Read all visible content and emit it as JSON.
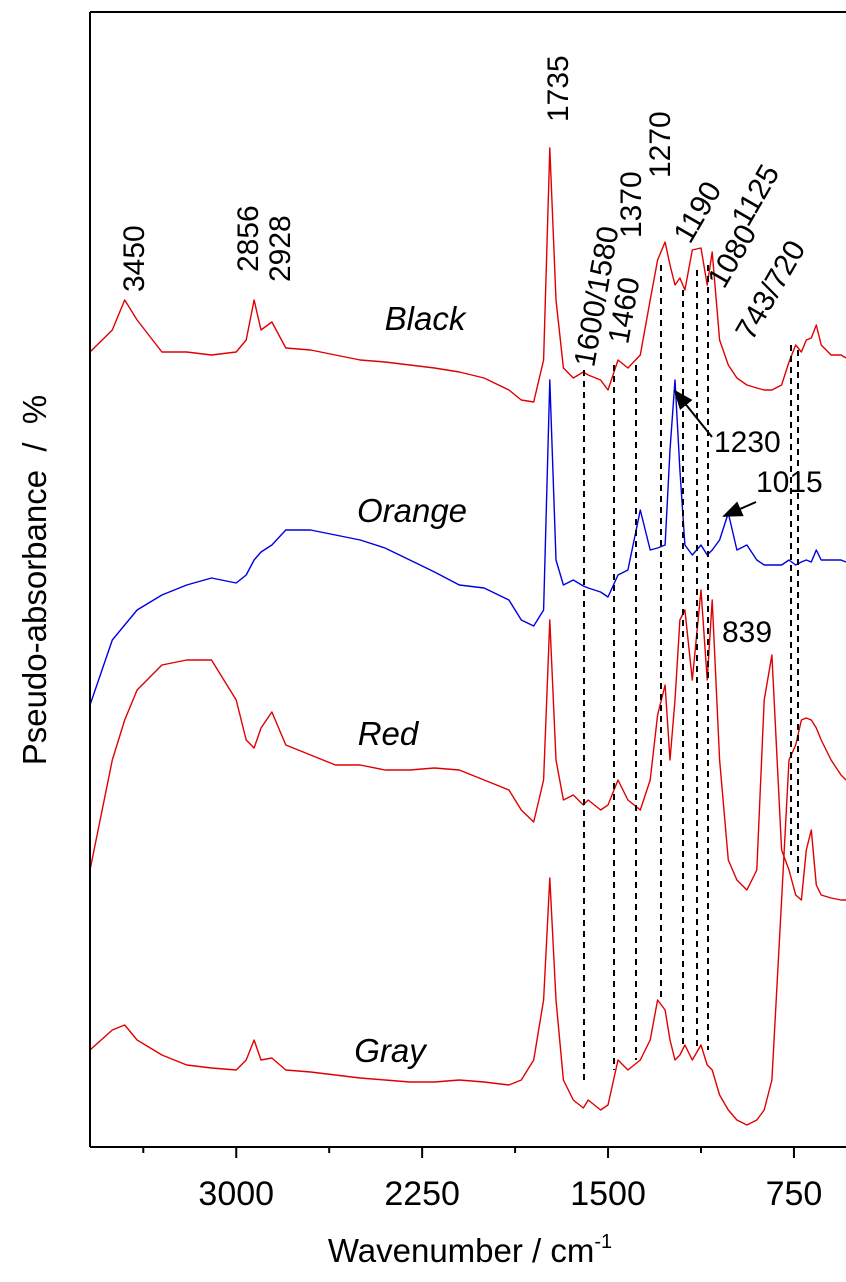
{
  "chart_data": {
    "type": "line",
    "x_label": "Wavenumber / cm",
    "x_label_exponent": "-1",
    "y_label": "Pseudo-absorbance  /  %",
    "xlim": [
      3590,
      540
    ],
    "xticks": [
      3000,
      2250,
      1500,
      750
    ],
    "xminor": [
      3375,
      2625,
      1875,
      1125
    ],
    "ylim": [
      0,
      1135
    ],
    "x": [
      3590,
      3500,
      3450,
      3400,
      3300,
      3200,
      3100,
      3000,
      2960,
      2928,
      2900,
      2856,
      2800,
      2700,
      2600,
      2500,
      2400,
      2300,
      2200,
      2100,
      2000,
      1900,
      1850,
      1800,
      1760,
      1735,
      1710,
      1680,
      1640,
      1600,
      1580,
      1530,
      1500,
      1460,
      1420,
      1370,
      1330,
      1300,
      1270,
      1250,
      1230,
      1210,
      1190,
      1160,
      1125,
      1100,
      1080,
      1050,
      1015,
      980,
      940,
      900,
      870,
      839,
      800,
      770,
      743,
      720,
      700,
      680,
      660,
      640,
      600,
      560,
      540
    ],
    "series": [
      {
        "name": "Black",
        "color": "#e00000",
        "values": [
          795,
          817,
          847,
          827,
          795,
          795,
          792,
          795,
          807,
          847,
          817,
          825,
          799,
          797,
          792,
          787,
          785,
          782,
          779,
          775,
          769,
          757,
          747,
          745,
          787,
          999,
          847,
          779,
          769,
          775,
          772,
          767,
          757,
          787,
          779,
          792,
          847,
          887,
          905,
          882,
          862,
          869,
          857,
          897,
          899,
          862,
          895,
          807,
          782,
          769,
          762,
          759,
          757,
          757,
          762,
          785,
          802,
          795,
          807,
          809,
          822,
          802,
          792,
          792,
          789
        ]
      },
      {
        "name": "Orange",
        "color": "#0000e0",
        "values": [
          442,
          507,
          522,
          537,
          552,
          562,
          569,
          564,
          572,
          587,
          595,
          602,
          617,
          617,
          612,
          607,
          599,
          587,
          575,
          562,
          559,
          547,
          527,
          521,
          537,
          767,
          587,
          562,
          567,
          561,
          559,
          555,
          550,
          572,
          577,
          637,
          597,
          599,
          602,
          697,
          767,
          677,
          602,
          592,
          602,
          592,
          597,
          607,
          634,
          597,
          602,
          587,
          582,
          582,
          582,
          587,
          582,
          585,
          587,
          585,
          597,
          587,
          587,
          587,
          585
        ]
      },
      {
        "name": "Red",
        "color": "#e00000",
        "values": [
          277,
          387,
          427,
          457,
          482,
          487,
          487,
          447,
          407,
          399,
          419,
          435,
          402,
          392,
          382,
          382,
          377,
          377,
          379,
          377,
          367,
          357,
          337,
          325,
          367,
          527,
          387,
          347,
          352,
          342,
          347,
          337,
          342,
          367,
          347,
          337,
          367,
          432,
          462,
          387,
          447,
          527,
          537,
          467,
          557,
          467,
          547,
          387,
          287,
          267,
          257,
          277,
          447,
          492,
          297,
          277,
          252,
          247,
          297,
          317,
          262,
          252,
          249,
          247,
          247
        ]
      },
      {
        "name": "Gray",
        "color": "#e00000",
        "values": [
          97,
          117,
          122,
          107,
          92,
          82,
          79,
          77,
          87,
          107,
          87,
          89,
          77,
          75,
          72,
          69,
          67,
          65,
          65,
          67,
          65,
          62,
          67,
          87,
          147,
          269,
          147,
          67,
          47,
          39,
          47,
          37,
          42,
          87,
          77,
          87,
          107,
          147,
          137,
          107,
          87,
          92,
          102,
          87,
          102,
          82,
          77,
          52,
          37,
          27,
          22,
          27,
          37,
          67,
          247,
          387,
          402,
          427,
          429,
          427,
          419,
          407,
          387,
          372,
          367
        ]
      }
    ],
    "annotations": [
      "3450",
      "2856",
      "2928",
      "1735",
      "1600/1580",
      "1460",
      "1370",
      "1270",
      "1190",
      "1125",
      "1080",
      "743/720",
      "1230",
      "1015",
      "839"
    ]
  }
}
